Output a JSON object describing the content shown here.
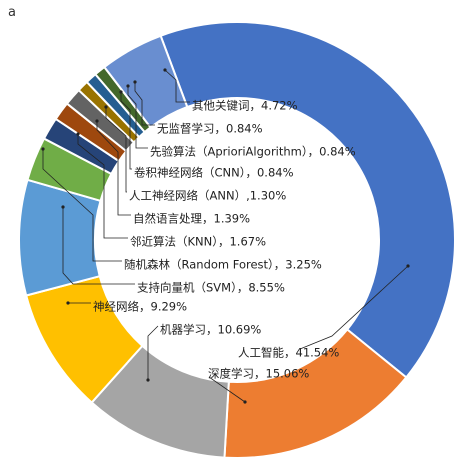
{
  "panel_label": "a",
  "chart_data": {
    "type": "pie",
    "donut": true,
    "legend": "none",
    "slices": [
      {
        "label": "人工智能，41.54%",
        "name": "人工智能",
        "value": 41.54,
        "color": "#4472c4"
      },
      {
        "label": "深度学习，15.06%",
        "name": "深度学习",
        "value": 15.06,
        "color": "#ed7d31"
      },
      {
        "label": "机器学习，10.69%",
        "name": "机器学习",
        "value": 10.69,
        "color": "#a5a5a5"
      },
      {
        "label": "神经网络，9.29%",
        "name": "神经网络",
        "value": 9.29,
        "color": "#ffc000"
      },
      {
        "label": "支持向量机（SVM），8.55%",
        "name": "支持向量机（SVM）",
        "value": 8.55,
        "color": "#5b9bd5"
      },
      {
        "label": "随机森林（Random Forest），3.25%",
        "name": "随机森林（Random Forest）",
        "value": 3.25,
        "color": "#70ad47"
      },
      {
        "label": "邻近算法（KNN），1.67%",
        "name": "邻近算法（KNN）",
        "value": 1.67,
        "color": "#264478"
      },
      {
        "label": "自然语言处理，1.39%",
        "name": "自然语言处理",
        "value": 1.39,
        "color": "#9e480e"
      },
      {
        "label": "人工神经网络（ANN）,1.30%",
        "name": "人工神经网络（ANN）",
        "value": 1.3,
        "color": "#636363"
      },
      {
        "label": "卷积神经网络（CNN），0.84%",
        "name": "卷积神经网络（CNN）",
        "value": 0.84,
        "color": "#997300"
      },
      {
        "label": "先验算法（AprioriAlgorithm），0.84%",
        "name": "先验算法（AprioriAlgorithm）",
        "value": 0.84,
        "color": "#255e91"
      },
      {
        "label": "无监督学习，0.84%",
        "name": "无监督学习",
        "value": 0.84,
        "color": "#43682b"
      },
      {
        "label": "其他关键词，4.72%",
        "name": "其他关键词",
        "value": 4.72,
        "color": "#698ed0"
      }
    ]
  }
}
